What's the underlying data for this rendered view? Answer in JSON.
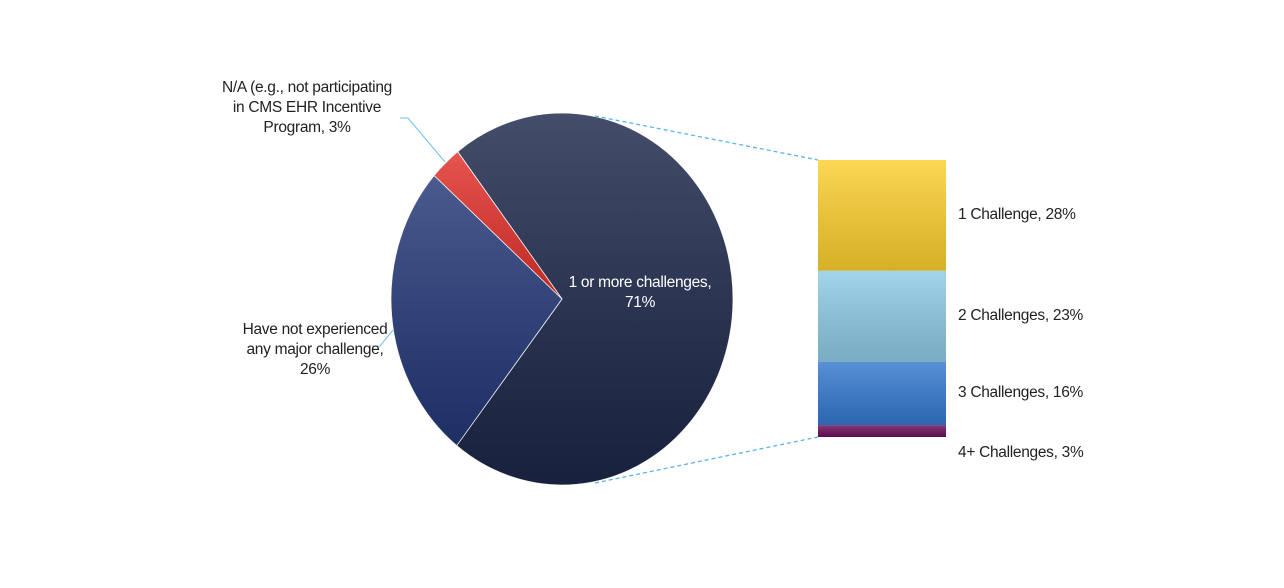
{
  "chart_data": {
    "type": "pie",
    "values": [
      71,
      26,
      3
    ],
    "value_labels": [
      "1 or more challenges, 71%",
      "Have not experienced any major challenge, 26%",
      "N/A (e.g., not participating in CMS EHR Incentive Program, 3%"
    ],
    "colors": [
      "#1b2749",
      "#233777",
      "#e2302a"
    ],
    "breakdown": {
      "values": [
        28,
        23,
        16,
        3
      ],
      "value_labels": [
        "1 Challenge, 28%",
        "2 Challenges, 23%",
        "3 Challenges, 16%",
        "4+ Challenges, 3%"
      ],
      "colors": [
        "#fccf2e",
        "#8ecbe6",
        "#3479cf",
        "#6b0f5c"
      ]
    }
  }
}
